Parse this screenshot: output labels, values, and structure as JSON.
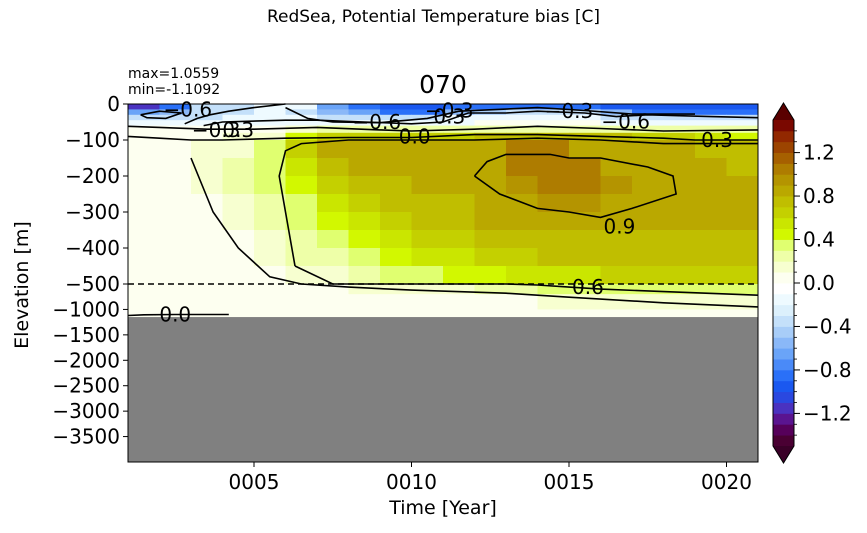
{
  "figure": {
    "suptitle": "RedSea, Potential Temperature bias [C]",
    "panel_title": "070",
    "stat_max": "max=1.0559",
    "stat_min": "min=-1.1092"
  },
  "chart_data": {
    "type": "heatmap",
    "title": "070",
    "suptitle": "RedSea, Potential Temperature bias [C]",
    "xlabel": "Time [Year]",
    "ylabel": "Elevation [m]",
    "xlim": [
      1,
      21
    ],
    "xticks": [
      {
        "value": 5,
        "label": "0005"
      },
      {
        "value": 10,
        "label": "0010"
      },
      {
        "value": 15,
        "label": "0015"
      },
      {
        "value": 20,
        "label": "0020"
      }
    ],
    "yticks_upper": [
      {
        "value": 0,
        "label": "0"
      },
      {
        "value": -100,
        "label": "−100"
      },
      {
        "value": -200,
        "label": "−200"
      },
      {
        "value": -300,
        "label": "−300"
      },
      {
        "value": -400,
        "label": "−400"
      },
      {
        "value": -500,
        "label": "−500"
      }
    ],
    "yticks_lower": [
      {
        "value": -1000,
        "label": "−1000"
      },
      {
        "value": -1500,
        "label": "−1500"
      },
      {
        "value": -2000,
        "label": "−2000"
      },
      {
        "value": -2500,
        "label": "−2500"
      },
      {
        "value": -3000,
        "label": "−3000"
      },
      {
        "value": -3500,
        "label": "−3500"
      }
    ],
    "ylim": [
      -4000,
      0
    ],
    "axis_break_depth": -500,
    "seafloor_depth": -1150,
    "seafloor_color": "#808080",
    "colorbar": {
      "ticks": [
        {
          "value": 1.2,
          "label": "1.2"
        },
        {
          "value": 0.8,
          "label": "0.8"
        },
        {
          "value": 0.4,
          "label": "0.4"
        },
        {
          "value": 0.0,
          "label": "0.0"
        },
        {
          "value": -0.4,
          "label": "−0.4"
        },
        {
          "value": -0.8,
          "label": "−0.8"
        },
        {
          "value": -1.2,
          "label": "−1.2"
        }
      ],
      "range": [
        -1.5,
        1.5
      ],
      "levels": 30,
      "colors": [
        "#4a0033",
        "#56005a",
        "#5a1490",
        "#4a32c0",
        "#2a48e0",
        "#1a58f0",
        "#2a70f8",
        "#4a8af8",
        "#6aa4f8",
        "#8ab8f8",
        "#a8cdf8",
        "#c4e0fa",
        "#dcf0fc",
        "#eefaff",
        "#ffffff",
        "#fdfff0",
        "#f7ffd0",
        "#eeffa8",
        "#e0ff70",
        "#d2f800",
        "#cae600",
        "#c4d000",
        "#c0be00",
        "#baa800",
        "#b49400",
        "#ae7c00",
        "#a66000",
        "#9c4400",
        "#922800",
        "#7a0800"
      ],
      "extend_low_color": "#3a0028",
      "extend_high_color": "#5a0000"
    },
    "field": {
      "x_edges": [
        1,
        2,
        3,
        4,
        5,
        6,
        7,
        8,
        9,
        10,
        11,
        12,
        13,
        14,
        15,
        16,
        17,
        18,
        19,
        20,
        21
      ],
      "z_edges": [
        0,
        -15,
        -30,
        -45,
        -60,
        -80,
        -100,
        -150,
        -200,
        -250,
        -300,
        -350,
        -400,
        -450,
        -500,
        -700,
        -1000,
        -1150
      ],
      "values": [
        [
          -1.1,
          -0.8,
          -0.4,
          -0.3,
          -0.2,
          -0.2,
          -0.7,
          -0.8,
          -0.9,
          -0.9,
          -0.8,
          -0.8,
          -0.8,
          -0.8,
          -0.8,
          -0.9,
          -0.9,
          -0.9,
          -0.9,
          -0.9
        ],
        [
          -0.7,
          -0.6,
          -0.4,
          -0.3,
          -0.2,
          -0.3,
          -0.6,
          -0.7,
          -0.8,
          -0.8,
          -0.6,
          -0.5,
          -0.4,
          -0.4,
          -0.4,
          -0.6,
          -0.8,
          -0.8,
          -0.8,
          -0.8
        ],
        [
          -0.4,
          -0.3,
          -0.3,
          -0.2,
          -0.2,
          -0.2,
          -0.3,
          -0.4,
          -0.4,
          -0.4,
          -0.2,
          -0.2,
          -0.2,
          -0.2,
          -0.2,
          -0.3,
          -0.4,
          -0.4,
          -0.4,
          -0.4
        ],
        [
          -0.2,
          -0.2,
          -0.2,
          -0.1,
          -0.1,
          -0.1,
          -0.1,
          -0.2,
          -0.2,
          -0.1,
          -0.1,
          0.0,
          0.0,
          0.0,
          0.0,
          -0.1,
          -0.2,
          -0.2,
          -0.1,
          -0.1
        ],
        [
          0.0,
          0.0,
          0.0,
          0.05,
          0.05,
          0.1,
          0.2,
          0.2,
          0.2,
          0.2,
          0.2,
          0.2,
          0.2,
          0.2,
          0.2,
          0.2,
          0.2,
          0.2,
          0.2,
          0.2
        ],
        [
          0.05,
          0.05,
          0.05,
          0.1,
          0.15,
          0.4,
          0.6,
          0.6,
          0.6,
          0.6,
          0.6,
          0.7,
          0.7,
          0.7,
          0.7,
          0.7,
          0.6,
          0.6,
          0.5,
          0.4
        ],
        [
          0.05,
          0.05,
          0.1,
          0.15,
          0.3,
          0.6,
          0.8,
          0.8,
          0.8,
          0.8,
          0.8,
          0.9,
          1.0,
          1.0,
          0.9,
          0.9,
          0.8,
          0.8,
          0.75,
          0.75
        ],
        [
          0.05,
          0.05,
          0.1,
          0.2,
          0.3,
          0.5,
          0.7,
          0.8,
          0.8,
          0.8,
          0.8,
          0.9,
          1.0,
          1.05,
          1.0,
          0.9,
          0.9,
          0.85,
          0.8,
          0.75
        ],
        [
          0.02,
          0.05,
          0.1,
          0.2,
          0.3,
          0.4,
          0.6,
          0.7,
          0.75,
          0.8,
          0.8,
          0.9,
          0.95,
          1.0,
          1.0,
          0.95,
          0.9,
          0.85,
          0.8,
          0.8
        ],
        [
          0.02,
          0.03,
          0.07,
          0.15,
          0.25,
          0.35,
          0.5,
          0.65,
          0.7,
          0.75,
          0.75,
          0.85,
          0.9,
          0.95,
          0.95,
          0.9,
          0.9,
          0.85,
          0.8,
          0.8
        ],
        [
          0.02,
          0.03,
          0.05,
          0.1,
          0.2,
          0.3,
          0.4,
          0.55,
          0.65,
          0.7,
          0.75,
          0.8,
          0.85,
          0.85,
          0.85,
          0.85,
          0.85,
          0.8,
          0.8,
          0.8
        ],
        [
          0.01,
          0.02,
          0.04,
          0.07,
          0.15,
          0.25,
          0.35,
          0.45,
          0.55,
          0.6,
          0.65,
          0.7,
          0.75,
          0.75,
          0.75,
          0.75,
          0.75,
          0.75,
          0.75,
          0.75
        ],
        [
          0.01,
          0.01,
          0.03,
          0.05,
          0.1,
          0.2,
          0.25,
          0.35,
          0.45,
          0.5,
          0.55,
          0.6,
          0.65,
          0.7,
          0.7,
          0.7,
          0.7,
          0.7,
          0.7,
          0.7
        ],
        [
          0.0,
          0.01,
          0.02,
          0.03,
          0.05,
          0.1,
          0.15,
          0.25,
          0.3,
          0.35,
          0.4,
          0.45,
          0.5,
          0.55,
          0.55,
          0.6,
          0.6,
          0.6,
          0.6,
          0.6
        ],
        [
          0.0,
          0.0,
          0.01,
          0.02,
          0.03,
          0.05,
          0.08,
          0.1,
          0.12,
          0.15,
          0.18,
          0.2,
          0.25,
          0.3,
          0.3,
          0.3,
          0.3,
          0.3,
          0.3,
          0.3
        ],
        [
          0.0,
          0.0,
          0.0,
          0.01,
          0.02,
          0.02,
          0.03,
          0.04,
          0.05,
          0.05,
          0.06,
          0.07,
          0.08,
          0.1,
          0.1,
          0.1,
          0.1,
          0.1,
          0.1,
          0.1
        ],
        [
          0.0,
          0.0,
          0.0,
          0.0,
          0.01,
          0.01,
          0.01,
          0.02,
          0.02,
          0.02,
          0.02,
          0.03,
          0.03,
          0.04,
          0.04,
          0.04,
          0.04,
          0.04,
          0.04,
          0.04
        ]
      ]
    },
    "contours": [
      {
        "label": "0.9",
        "points": [
          [
            12.0,
            -200
          ],
          [
            12.4,
            -160
          ],
          [
            13.0,
            -140
          ],
          [
            14.4,
            -140
          ],
          [
            15.0,
            -150
          ],
          [
            16.0,
            -150
          ],
          [
            17.5,
            -175
          ],
          [
            18.3,
            -200
          ],
          [
            18.4,
            -250
          ],
          [
            17.0,
            -290
          ],
          [
            16.0,
            -315
          ],
          [
            15.0,
            -300
          ],
          [
            14.0,
            -290
          ],
          [
            12.8,
            -250
          ],
          [
            12.0,
            -200
          ]
        ]
      },
      {
        "label": "0.6",
        "points": [
          [
            6.3,
            -450
          ],
          [
            6.0,
            -300
          ],
          [
            5.8,
            -200
          ],
          [
            6.0,
            -130
          ],
          [
            6.5,
            -110
          ],
          [
            8.0,
            -100
          ],
          [
            10.0,
            -100
          ],
          [
            12.0,
            -100
          ],
          [
            14.0,
            -95
          ],
          [
            16.0,
            -100
          ],
          [
            18.0,
            -110
          ],
          [
            20.0,
            -110
          ],
          [
            21.0,
            -110
          ]
        ]
      },
      {
        "label": "0.6",
        "points": [
          [
            6.3,
            -450
          ],
          [
            7.5,
            -500
          ],
          [
            8.5,
            -500
          ],
          [
            10.0,
            -500
          ],
          [
            13.0,
            -500
          ],
          [
            14.0,
            -520
          ],
          [
            15.0,
            -560
          ],
          [
            16.0,
            -600
          ],
          [
            18.0,
            -650
          ],
          [
            21.0,
            -720
          ]
        ]
      },
      {
        "label": "0.3",
        "points": [
          [
            3.0,
            -150
          ],
          [
            3.7,
            -300
          ],
          [
            4.5,
            -400
          ],
          [
            5.5,
            -480
          ],
          [
            6.5,
            -500
          ],
          [
            8.0,
            -560
          ],
          [
            10.0,
            -620
          ],
          [
            13.0,
            -680
          ],
          [
            15.0,
            -760
          ],
          [
            18.0,
            -870
          ],
          [
            21.0,
            -950
          ]
        ]
      },
      {
        "label": "0.0",
        "points": [
          [
            1.0,
            -1120
          ],
          [
            1.5,
            -1105
          ],
          [
            2.5,
            -1100
          ],
          [
            4.2,
            -1100
          ]
        ]
      },
      {
        "label": "0.3",
        "points": [
          [
            1.0,
            -90
          ],
          [
            2.0,
            -95
          ],
          [
            3.0,
            -100
          ],
          [
            4.0,
            -100
          ],
          [
            6.0,
            -95
          ],
          [
            8.0,
            -93
          ],
          [
            10.0,
            -93
          ],
          [
            12.0,
            -85
          ],
          [
            14.0,
            -85
          ],
          [
            16.0,
            -90
          ],
          [
            18.0,
            -95
          ],
          [
            19.0,
            -100
          ],
          [
            21.0,
            -100
          ]
        ]
      },
      {
        "label": "0.0",
        "points": [
          [
            1.0,
            -62
          ],
          [
            2.0,
            -65
          ],
          [
            3.5,
            -70
          ],
          [
            5.0,
            -70
          ],
          [
            7.0,
            -65
          ],
          [
            9.0,
            -72
          ],
          [
            10.0,
            -75
          ],
          [
            12.0,
            -70
          ],
          [
            14.0,
            -62
          ],
          [
            16.0,
            -68
          ],
          [
            18.0,
            -75
          ],
          [
            21.0,
            -72
          ]
        ]
      },
      {
        "label": "-0.3",
        "points": [
          [
            3.4,
            -60
          ],
          [
            4.0,
            -50
          ],
          [
            6.0,
            -45
          ],
          [
            7.0,
            -45
          ],
          [
            8.5,
            -50
          ],
          [
            10.0,
            -55
          ],
          [
            11.0,
            -50
          ],
          [
            11.8,
            -25
          ],
          [
            13.0,
            -25
          ],
          [
            14.0,
            -20
          ],
          [
            15.5,
            -25
          ],
          [
            16.5,
            -35
          ],
          [
            17.5,
            -30
          ],
          [
            19.5,
            -35
          ],
          [
            21.0,
            -38
          ]
        ]
      },
      {
        "label": "-0.6",
        "points": [
          [
            6.0,
            -10
          ],
          [
            6.7,
            -40
          ],
          [
            7.5,
            -50
          ],
          [
            9.0,
            -52
          ],
          [
            10.5,
            -40
          ],
          [
            11.5,
            -20
          ],
          [
            14.0,
            -10
          ],
          [
            15.5,
            -18
          ],
          [
            17.0,
            -28
          ],
          [
            19.0,
            -28
          ]
        ]
      },
      {
        "label": "-0.6",
        "points": [
          [
            1.4,
            -30
          ],
          [
            2.0,
            -20
          ],
          [
            2.7,
            -25
          ],
          [
            2.2,
            -40
          ],
          [
            1.6,
            -38
          ],
          [
            1.4,
            -30
          ]
        ]
      },
      {
        "label": "-0.3",
        "points": [
          [
            2.8,
            -55
          ],
          [
            3.2,
            -40
          ],
          [
            3.6,
            -30
          ],
          [
            4.2,
            -20
          ],
          [
            5.0,
            -10
          ],
          [
            6.0,
            0
          ]
        ]
      }
    ],
    "contour_labels": [
      {
        "text": "0.9",
        "x": 16.6,
        "z": -340
      },
      {
        "text": "0.6",
        "x": 15.6,
        "z": -560
      },
      {
        "text": "0.0",
        "x": 2.5,
        "z": -1100
      },
      {
        "text": "0.3",
        "x": 19.7,
        "z": -100
      },
      {
        "text": "0.0",
        "x": 10.1,
        "z": -90
      },
      {
        "text": "−0.6",
        "x": 8.9,
        "z": -50
      },
      {
        "text": "0.3",
        "x": 11.2,
        "z": -35
      },
      {
        "text": "−0.3",
        "x": 11.2,
        "z": -18
      },
      {
        "text": "−0.3",
        "x": 15.0,
        "z": -20
      },
      {
        "text": "−0.6",
        "x": 16.8,
        "z": -48
      },
      {
        "text": "−0.3",
        "x": 3.8,
        "z": -72
      },
      {
        "text": "0.3",
        "x": 4.5,
        "z": -72
      },
      {
        "text": "−0.6",
        "x": 2.9,
        "z": -15
      }
    ]
  }
}
